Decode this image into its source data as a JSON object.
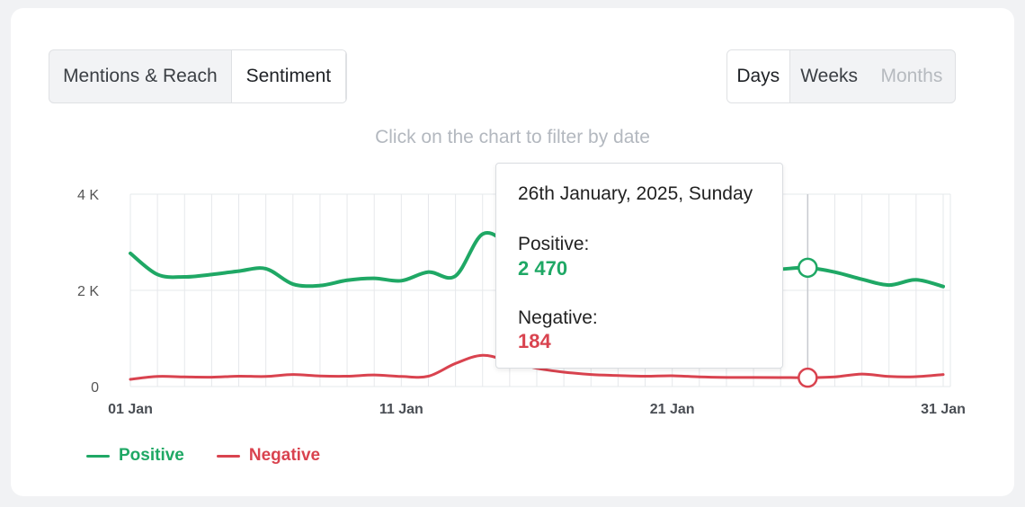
{
  "view_toggle": {
    "items": [
      "Mentions & Reach",
      "Sentiment"
    ],
    "active_index": 1
  },
  "period_toggle": {
    "items": [
      "Days",
      "Weeks",
      "Months"
    ],
    "active_index": 0,
    "disabled_index": 2
  },
  "hint": "Click on the chart to filter by date",
  "colors": {
    "positive": "#1fa865",
    "negative": "#d9434f",
    "grid": "#e6e8eb",
    "axis_text": "#4a4e54"
  },
  "tooltip": {
    "date": "26th January, 2025, Sunday",
    "positive_label": "Positive:",
    "positive_value": "2 470",
    "negative_label": "Negative:",
    "negative_value": "184"
  },
  "legend": {
    "positive": "Positive",
    "negative": "Negative"
  },
  "chart_data": {
    "type": "line",
    "x": [
      1,
      2,
      3,
      4,
      5,
      6,
      7,
      8,
      9,
      10,
      11,
      12,
      13,
      14,
      15,
      16,
      17,
      18,
      19,
      20,
      21,
      22,
      23,
      24,
      25,
      26,
      27,
      28,
      29,
      30,
      31
    ],
    "x_ticks": [
      {
        "x": 1,
        "label": "01 Jan"
      },
      {
        "x": 11,
        "label": "11 Jan"
      },
      {
        "x": 21,
        "label": "21 Jan"
      },
      {
        "x": 31,
        "label": "31 Jan"
      }
    ],
    "y_ticks": [
      {
        "y": 0,
        "label": "0"
      },
      {
        "y": 2000,
        "label": "2 K"
      },
      {
        "y": 4000,
        "label": "4 K"
      }
    ],
    "ylim": [
      0,
      4000
    ],
    "series": [
      {
        "name": "Positive",
        "values": [
          2770,
          2330,
          2280,
          2330,
          2400,
          2450,
          2130,
          2100,
          2210,
          2250,
          2200,
          2380,
          2300,
          3170,
          2950,
          2650,
          2550,
          2500,
          2470,
          2450,
          2430,
          2420,
          2400,
          2410,
          2440,
          2470,
          2380,
          2230,
          2110,
          2220,
          2080
        ]
      },
      {
        "name": "Negative",
        "values": [
          150,
          210,
          200,
          195,
          215,
          210,
          250,
          220,
          215,
          240,
          210,
          215,
          480,
          650,
          520,
          380,
          300,
          250,
          230,
          215,
          225,
          200,
          190,
          190,
          188,
          184,
          200,
          260,
          210,
          205,
          250
        ]
      }
    ],
    "highlight_x": 26,
    "grid": true
  }
}
